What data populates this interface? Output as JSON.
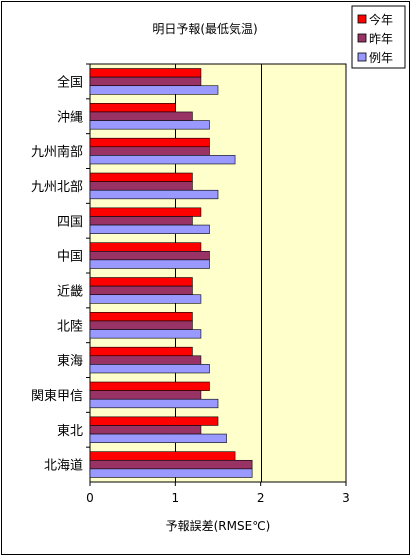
{
  "chart_data": {
    "type": "bar",
    "orientation": "horizontal",
    "title": "明日予報(最低気温)",
    "xlabel": "予報誤差(RMSE℃)",
    "ylabel": "",
    "xlim": [
      0,
      3
    ],
    "xticks": [
      "0",
      "1",
      "2",
      "3"
    ],
    "grid": "vertical",
    "legend_position": "top-right",
    "categories": [
      "全国",
      "沖縄",
      "九州南部",
      "九州北部",
      "四国",
      "中国",
      "近畿",
      "北陸",
      "東海",
      "関東甲信",
      "東北",
      "北海道"
    ],
    "series": [
      {
        "name": "今年",
        "color": "#ff0000",
        "values": [
          1.3,
          1.0,
          1.4,
          1.2,
          1.3,
          1.3,
          1.2,
          1.2,
          1.2,
          1.4,
          1.5,
          1.7
        ]
      },
      {
        "name": "昨年",
        "color": "#993366",
        "values": [
          1.3,
          1.2,
          1.4,
          1.2,
          1.2,
          1.4,
          1.2,
          1.2,
          1.3,
          1.3,
          1.3,
          1.9
        ]
      },
      {
        "name": "例年",
        "color": "#9999ff",
        "values": [
          1.5,
          1.4,
          1.7,
          1.5,
          1.4,
          1.4,
          1.3,
          1.3,
          1.4,
          1.5,
          1.6,
          1.9
        ]
      }
    ]
  }
}
